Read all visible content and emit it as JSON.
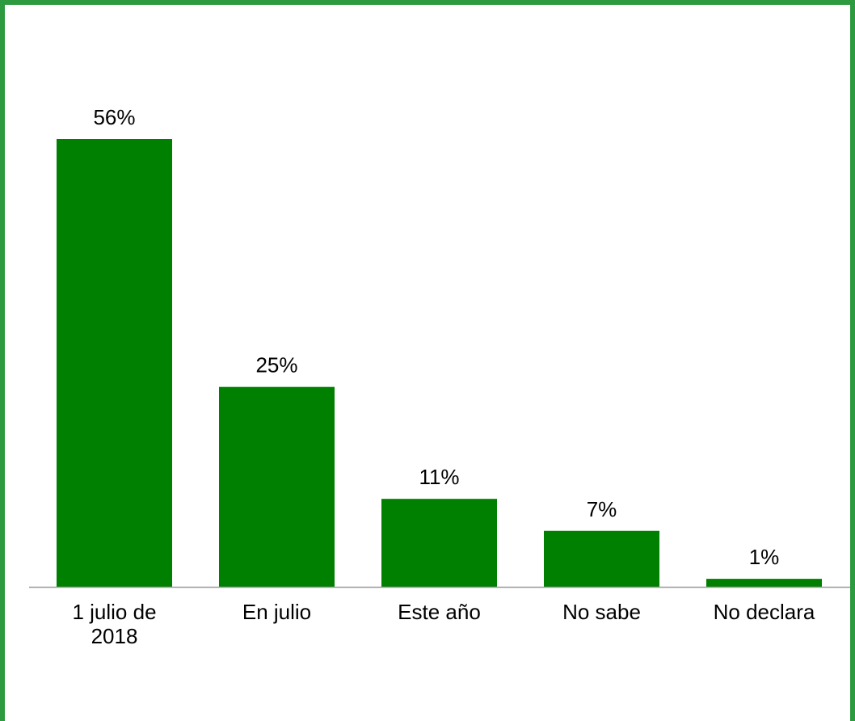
{
  "chart_data": {
    "type": "bar",
    "categories": [
      [
        "1 julio de",
        "2018"
      ],
      [
        "En julio"
      ],
      [
        "Este año"
      ],
      [
        "No sabe"
      ],
      [
        "No declara"
      ]
    ],
    "values": [
      56,
      25,
      11,
      7,
      1
    ],
    "data_labels": [
      "56%",
      "25%",
      "11%",
      "7%",
      "1%"
    ],
    "unit": "%",
    "ylim": [
      0,
      56
    ],
    "grid": false,
    "legend": "none",
    "bar_color": "#008000",
    "frame_color": "#2e9a3f",
    "axis_color": "#999999"
  }
}
